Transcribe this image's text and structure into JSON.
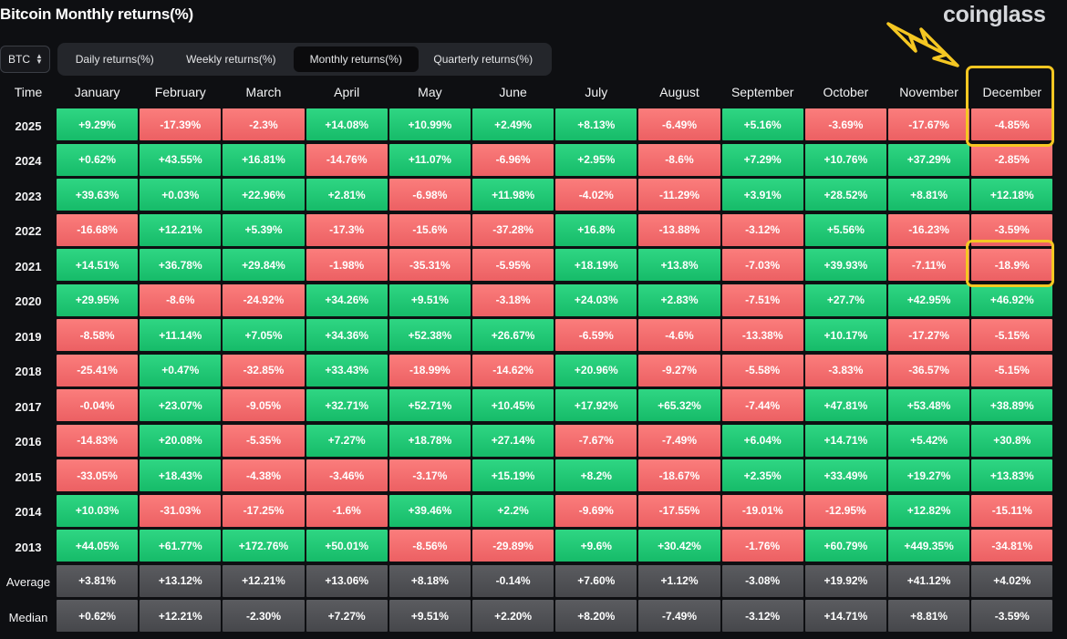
{
  "title": "Bitcoin Monthly returns(%)",
  "brand": "coinglass",
  "coin_select": {
    "value": "BTC"
  },
  "tabs": [
    {
      "label": "Daily returns(%)",
      "active": false
    },
    {
      "label": "Weekly returns(%)",
      "active": false
    },
    {
      "label": "Monthly returns(%)",
      "active": true
    },
    {
      "label": "Quarterly returns(%)",
      "active": false
    }
  ],
  "colors": {
    "positive": "#1fc774",
    "negative": "#f26b6d",
    "stat": "#505155",
    "highlight": "#f5c722"
  },
  "chart_data": {
    "type": "table",
    "title": "Bitcoin Monthly returns(%)",
    "row_header_label": "Time",
    "columns": [
      "January",
      "February",
      "March",
      "April",
      "May",
      "June",
      "July",
      "August",
      "September",
      "October",
      "November",
      "December"
    ],
    "rows": [
      {
        "label": "2025",
        "values": [
          "+9.29%",
          "-17.39%",
          "-2.3%",
          "+14.08%",
          "+10.99%",
          "+2.49%",
          "+8.13%",
          "-6.49%",
          "+5.16%",
          "-3.69%",
          "-17.67%",
          "-4.85%"
        ]
      },
      {
        "label": "2024",
        "values": [
          "+0.62%",
          "+43.55%",
          "+16.81%",
          "-14.76%",
          "+11.07%",
          "-6.96%",
          "+2.95%",
          "-8.6%",
          "+7.29%",
          "+10.76%",
          "+37.29%",
          "-2.85%"
        ]
      },
      {
        "label": "2023",
        "values": [
          "+39.63%",
          "+0.03%",
          "+22.96%",
          "+2.81%",
          "-6.98%",
          "+11.98%",
          "-4.02%",
          "-11.29%",
          "+3.91%",
          "+28.52%",
          "+8.81%",
          "+12.18%"
        ]
      },
      {
        "label": "2022",
        "values": [
          "-16.68%",
          "+12.21%",
          "+5.39%",
          "-17.3%",
          "-15.6%",
          "-37.28%",
          "+16.8%",
          "-13.88%",
          "-3.12%",
          "+5.56%",
          "-16.23%",
          "-3.59%"
        ]
      },
      {
        "label": "2021",
        "values": [
          "+14.51%",
          "+36.78%",
          "+29.84%",
          "-1.98%",
          "-35.31%",
          "-5.95%",
          "+18.19%",
          "+13.8%",
          "-7.03%",
          "+39.93%",
          "-7.11%",
          "-18.9%"
        ]
      },
      {
        "label": "2020",
        "values": [
          "+29.95%",
          "-8.6%",
          "-24.92%",
          "+34.26%",
          "+9.51%",
          "-3.18%",
          "+24.03%",
          "+2.83%",
          "-7.51%",
          "+27.7%",
          "+42.95%",
          "+46.92%"
        ]
      },
      {
        "label": "2019",
        "values": [
          "-8.58%",
          "+11.14%",
          "+7.05%",
          "+34.36%",
          "+52.38%",
          "+26.67%",
          "-6.59%",
          "-4.6%",
          "-13.38%",
          "+10.17%",
          "-17.27%",
          "-5.15%"
        ]
      },
      {
        "label": "2018",
        "values": [
          "-25.41%",
          "+0.47%",
          "-32.85%",
          "+33.43%",
          "-18.99%",
          "-14.62%",
          "+20.96%",
          "-9.27%",
          "-5.58%",
          "-3.83%",
          "-36.57%",
          "-5.15%"
        ]
      },
      {
        "label": "2017",
        "values": [
          "-0.04%",
          "+23.07%",
          "-9.05%",
          "+32.71%",
          "+52.71%",
          "+10.45%",
          "+17.92%",
          "+65.32%",
          "-7.44%",
          "+47.81%",
          "+53.48%",
          "+38.89%"
        ]
      },
      {
        "label": "2016",
        "values": [
          "-14.83%",
          "+20.08%",
          "-5.35%",
          "+7.27%",
          "+18.78%",
          "+27.14%",
          "-7.67%",
          "-7.49%",
          "+6.04%",
          "+14.71%",
          "+5.42%",
          "+30.8%"
        ]
      },
      {
        "label": "2015",
        "values": [
          "-33.05%",
          "+18.43%",
          "-4.38%",
          "-3.46%",
          "-3.17%",
          "+15.19%",
          "+8.2%",
          "-18.67%",
          "+2.35%",
          "+33.49%",
          "+19.27%",
          "+13.83%"
        ]
      },
      {
        "label": "2014",
        "values": [
          "+10.03%",
          "-31.03%",
          "-17.25%",
          "-1.6%",
          "+39.46%",
          "+2.2%",
          "-9.69%",
          "-17.55%",
          "-19.01%",
          "-12.95%",
          "+12.82%",
          "-15.11%"
        ]
      },
      {
        "label": "2013",
        "values": [
          "+44.05%",
          "+61.77%",
          "+172.76%",
          "+50.01%",
          "-8.56%",
          "-29.89%",
          "+9.6%",
          "+30.42%",
          "-1.76%",
          "+60.79%",
          "+449.35%",
          "-34.81%"
        ]
      }
    ],
    "summary_rows": [
      {
        "label": "Average",
        "values": [
          "+3.81%",
          "+13.12%",
          "+12.21%",
          "+13.06%",
          "+8.18%",
          "-0.14%",
          "+7.60%",
          "+1.12%",
          "-3.08%",
          "+19.92%",
          "+41.12%",
          "+4.02%"
        ]
      },
      {
        "label": "Median",
        "values": [
          "+0.62%",
          "+12.21%",
          "-2.30%",
          "+7.27%",
          "+9.51%",
          "+2.20%",
          "+8.20%",
          "-7.49%",
          "-3.12%",
          "+14.71%",
          "+8.81%",
          "-3.59%"
        ]
      }
    ],
    "highlights": [
      {
        "row": "2025",
        "column": "December",
        "includes_header": true
      },
      {
        "row": "2021",
        "column": "December",
        "includes_header": false
      }
    ]
  }
}
